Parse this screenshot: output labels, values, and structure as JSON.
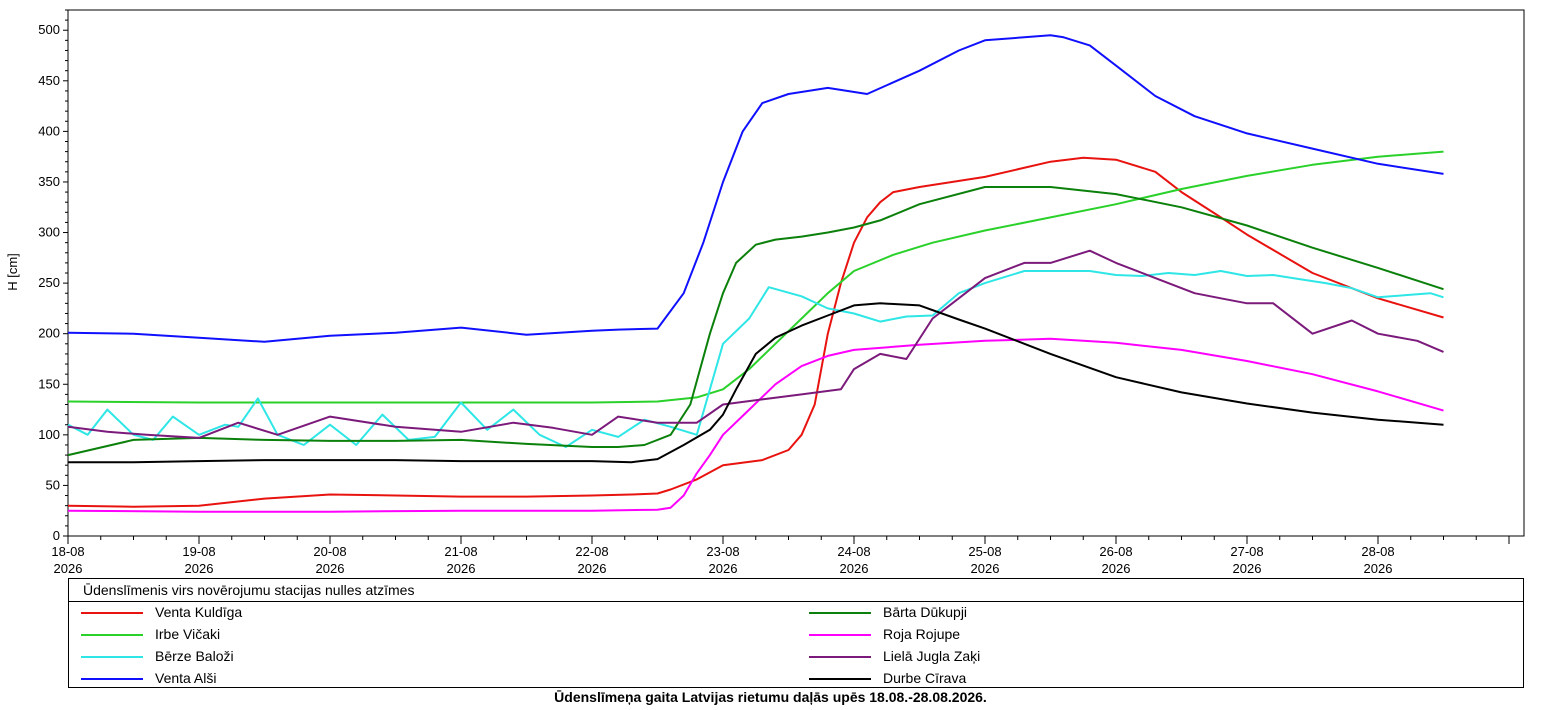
{
  "chart_data": {
    "type": "line",
    "title": "Ūdenslīmeņa gaita Latvijas rietumu daļās upēs 18.08.-28.08.2026.",
    "ylabel": "H [cm]",
    "xlabel": "",
    "ylim": [
      0,
      520
    ],
    "yticks": [
      0,
      50,
      100,
      150,
      200,
      250,
      300,
      350,
      400,
      450,
      500
    ],
    "xlim": [
      0,
      11.2
    ],
    "xticks": [
      {
        "x": 0,
        "day": "18-08",
        "year": "2026"
      },
      {
        "x": 1,
        "day": "19-08",
        "year": "2026"
      },
      {
        "x": 2,
        "day": "20-08",
        "year": "2026"
      },
      {
        "x": 3,
        "day": "21-08",
        "year": "2026"
      },
      {
        "x": 4,
        "day": "22-08",
        "year": "2026"
      },
      {
        "x": 5,
        "day": "23-08",
        "year": "2026"
      },
      {
        "x": 6,
        "day": "24-08",
        "year": "2026"
      },
      {
        "x": 7,
        "day": "25-08",
        "year": "2026"
      },
      {
        "x": 8,
        "day": "26-08",
        "year": "2026"
      },
      {
        "x": 9,
        "day": "27-08",
        "year": "2026"
      },
      {
        "x": 10,
        "day": "28-08",
        "year": "2026"
      }
    ],
    "grid": false,
    "legend_title": "Ūdenslīmenis virs novērojumu stacijas nulles atzīmes",
    "legend_position": "bottom",
    "series": [
      {
        "name": "Venta Kuldīga",
        "color": "#e8130f",
        "x": [
          0,
          0.5,
          1,
          1.5,
          2,
          2.5,
          3,
          3.5,
          4,
          4.3,
          4.5,
          4.6,
          4.8,
          5,
          5.3,
          5.5,
          5.6,
          5.7,
          5.8,
          5.9,
          6.0,
          6.1,
          6.2,
          6.3,
          6.5,
          7,
          7.5,
          7.75,
          8,
          8.3,
          8.5,
          8.8,
          9,
          9.5,
          10,
          10.5
        ],
        "values": [
          30,
          29,
          30,
          37,
          41,
          40,
          39,
          39,
          40,
          41,
          42,
          46,
          56,
          70,
          75,
          85,
          100,
          130,
          200,
          250,
          290,
          315,
          330,
          340,
          345,
          355,
          370,
          374,
          372,
          360,
          340,
          315,
          298,
          260,
          235,
          216
        ]
      },
      {
        "name": "Irbe Vičaki",
        "color": "#2ad12a",
        "x": [
          0,
          1,
          2,
          3,
          4,
          4.5,
          4.8,
          5,
          5.2,
          5.4,
          5.6,
          5.8,
          6,
          6.3,
          6.6,
          7,
          7.5,
          8,
          8.5,
          9,
          9.5,
          10,
          10.5
        ],
        "values": [
          133,
          132,
          132,
          132,
          132,
          133,
          137,
          145,
          165,
          190,
          215,
          240,
          262,
          278,
          290,
          302,
          315,
          328,
          343,
          356,
          367,
          375,
          380
        ]
      },
      {
        "name": "Bērze Baloži",
        "color": "#2ee6e6",
        "x": [
          0,
          0.15,
          0.3,
          0.5,
          0.65,
          0.8,
          1.0,
          1.2,
          1.3,
          1.45,
          1.6,
          1.8,
          2.0,
          2.2,
          2.4,
          2.6,
          2.8,
          3.0,
          3.2,
          3.4,
          3.6,
          3.8,
          4.0,
          4.2,
          4.4,
          4.6,
          4.8,
          5.0,
          5.2,
          5.35,
          5.6,
          5.8,
          6.0,
          6.2,
          6.4,
          6.6,
          6.8,
          7.0,
          7.3,
          7.5,
          7.8,
          8.0,
          8.2,
          8.4,
          8.6,
          8.8,
          9.0,
          9.2,
          9.4,
          9.6,
          9.8,
          10.0,
          10.2,
          10.4,
          10.5
        ],
        "values": [
          110,
          100,
          125,
          100,
          95,
          118,
          100,
          110,
          108,
          136,
          100,
          90,
          110,
          90,
          120,
          95,
          98,
          132,
          105,
          125,
          100,
          88,
          105,
          98,
          115,
          108,
          100,
          190,
          215,
          246,
          237,
          225,
          220,
          212,
          217,
          218,
          240,
          250,
          262,
          262,
          262,
          258,
          257,
          260,
          258,
          262,
          257,
          258,
          254,
          250,
          245,
          236,
          238,
          240,
          236
        ]
      },
      {
        "name": "Venta Alši",
        "color": "#1010ff",
        "x": [
          0,
          0.5,
          1,
          1.5,
          2,
          2.5,
          3,
          3.5,
          4,
          4.2,
          4.5,
          4.7,
          4.85,
          5,
          5.15,
          5.3,
          5.5,
          5.8,
          6.1,
          6.5,
          6.8,
          7.0,
          7.5,
          7.6,
          7.8,
          8.0,
          8.3,
          8.6,
          9.0,
          9.5,
          10.0,
          10.5
        ],
        "values": [
          201,
          200,
          196,
          192,
          198,
          201,
          206,
          199,
          203,
          204,
          205,
          240,
          290,
          350,
          400,
          428,
          437,
          443,
          437,
          460,
          480,
          490,
          495,
          493,
          485,
          465,
          435,
          415,
          398,
          383,
          368,
          358
        ]
      },
      {
        "name": "Bārta Dūkupji",
        "color": "#0b800b",
        "x": [
          0,
          0.5,
          1,
          1.5,
          2,
          2.5,
          3,
          3.5,
          4,
          4.2,
          4.4,
          4.6,
          4.75,
          4.9,
          5.0,
          5.1,
          5.25,
          5.4,
          5.6,
          5.8,
          6.0,
          6.2,
          6.5,
          7.0,
          7.5,
          8.0,
          8.5,
          9.0,
          9.5,
          10.0,
          10.5
        ],
        "values": [
          80,
          95,
          97,
          95,
          94,
          94,
          95,
          91,
          88,
          88,
          90,
          100,
          130,
          200,
          240,
          270,
          288,
          293,
          296,
          300,
          305,
          312,
          328,
          345,
          345,
          338,
          325,
          307,
          285,
          265,
          244
        ]
      },
      {
        "name": "Roja Rojupe",
        "color": "#ff00ff",
        "x": [
          0,
          1,
          2,
          3,
          4,
          4.5,
          4.6,
          4.7,
          4.8,
          4.9,
          5.0,
          5.2,
          5.4,
          5.6,
          5.8,
          6.0,
          6.5,
          7.0,
          7.5,
          8.0,
          8.5,
          9.0,
          9.5,
          10.0,
          10.5
        ],
        "values": [
          25,
          24,
          24,
          25,
          25,
          26,
          28,
          40,
          62,
          80,
          100,
          125,
          150,
          168,
          178,
          184,
          189,
          193,
          195,
          191,
          184,
          173,
          160,
          143,
          124
        ]
      },
      {
        "name": "Lielā Jugla Zaķi",
        "color": "#7b1a7b",
        "x": [
          0,
          0.3,
          0.6,
          1.0,
          1.3,
          1.6,
          2.0,
          2.5,
          3.0,
          3.4,
          3.7,
          4.0,
          4.2,
          4.5,
          4.8,
          5.0,
          5.3,
          5.6,
          5.9,
          6.0,
          6.2,
          6.4,
          6.6,
          6.8,
          7.0,
          7.3,
          7.5,
          7.8,
          8.0,
          8.3,
          8.6,
          8.8,
          9.0,
          9.2,
          9.5,
          9.8,
          10.0,
          10.3,
          10.5
        ],
        "values": [
          108,
          103,
          100,
          97,
          112,
          100,
          118,
          108,
          103,
          112,
          107,
          100,
          118,
          112,
          112,
          130,
          135,
          140,
          145,
          165,
          180,
          175,
          215,
          235,
          255,
          270,
          270,
          282,
          270,
          255,
          240,
          235,
          230,
          230,
          200,
          213,
          200,
          193,
          182
        ]
      },
      {
        "name": "Durbe Cīrava",
        "color": "#000000",
        "x": [
          0,
          0.5,
          1,
          1.5,
          2,
          2.5,
          3,
          3.5,
          4,
          4.3,
          4.5,
          4.7,
          4.9,
          5.0,
          5.1,
          5.25,
          5.4,
          5.6,
          5.8,
          6.0,
          6.2,
          6.5,
          6.8,
          7.0,
          7.5,
          8.0,
          8.5,
          9.0,
          9.5,
          10.0,
          10.5
        ],
        "values": [
          73,
          73,
          74,
          75,
          75,
          75,
          74,
          74,
          74,
          73,
          76,
          90,
          105,
          120,
          145,
          180,
          196,
          208,
          218,
          228,
          230,
          228,
          214,
          205,
          180,
          157,
          142,
          131,
          122,
          115,
          110
        ]
      }
    ]
  }
}
